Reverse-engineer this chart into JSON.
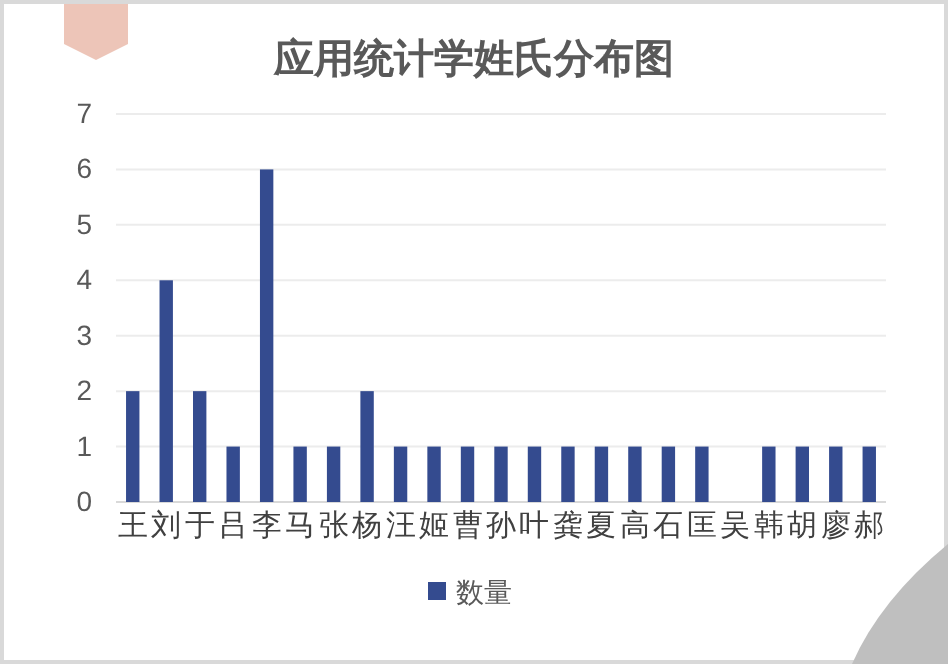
{
  "chart_data": {
    "type": "bar",
    "title": "应用统计学姓氏分布图",
    "categories": [
      "王",
      "刘",
      "于",
      "吕",
      "李",
      "马",
      "张",
      "杨",
      "汪",
      "姬",
      "曹",
      "孙",
      "叶",
      "龚",
      "夏",
      "高",
      "石",
      "匡",
      "吴",
      "韩",
      "胡",
      "廖",
      "郝"
    ],
    "series": [
      {
        "name": "数量",
        "color": "#344b8f",
        "values": [
          2,
          4,
          2,
          1,
          6,
          1,
          1,
          2,
          1,
          1,
          1,
          1,
          1,
          1,
          1,
          1,
          1,
          1,
          0,
          1,
          1,
          1,
          1
        ]
      }
    ],
    "ylim": [
      0,
      7
    ],
    "yticks": [
      0,
      1,
      2,
      3,
      4,
      5,
      6,
      7
    ],
    "grid": "y",
    "legend": "bottom"
  }
}
